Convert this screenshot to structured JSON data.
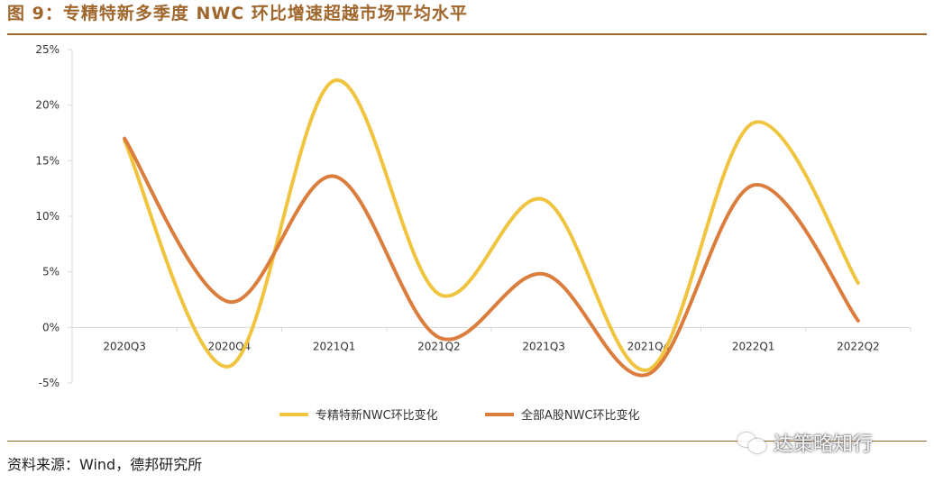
{
  "header": {
    "title": "图 9：专精特新多季度 NWC 环比增速超越市场平均水平"
  },
  "footer": {
    "source": "资料来源：Wind，德邦研究所"
  },
  "watermark": {
    "text": "达策略知行",
    "icon": "wechat-icon"
  },
  "colors": {
    "accent": "#a0672d",
    "series1": "#f0c43f",
    "series2": "#db7d3c",
    "axis": "#d9d9d9"
  },
  "chart_data": {
    "type": "line",
    "smooth": true,
    "title": "",
    "xlabel": "",
    "ylabel": "",
    "categories": [
      "2020Q3",
      "2020Q4",
      "2021Q1",
      "2021Q2",
      "2021Q3",
      "2021Q4",
      "2022Q1",
      "2022Q2"
    ],
    "ylim": [
      -5,
      25
    ],
    "yticks": [
      -5,
      0,
      5,
      10,
      15,
      20,
      25
    ],
    "ytick_labels": [
      "-5%",
      "0%",
      "5%",
      "10%",
      "15%",
      "20%",
      "25%"
    ],
    "grid": false,
    "legend": "bottom",
    "series": [
      {
        "name": "专精特新NWC环比变化",
        "values": [
          16.8,
          -3.5,
          22.2,
          3.0,
          11.5,
          -3.8,
          18.4,
          4.0
        ]
      },
      {
        "name": "全部A股NWC环比变化",
        "values": [
          17.0,
          2.3,
          13.6,
          -0.9,
          4.8,
          -4.2,
          12.8,
          0.6
        ]
      }
    ]
  }
}
